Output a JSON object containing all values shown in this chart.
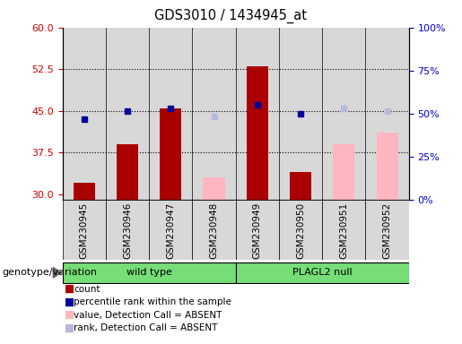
{
  "title": "GDS3010 / 1434945_at",
  "samples": [
    "GSM230945",
    "GSM230946",
    "GSM230947",
    "GSM230948",
    "GSM230949",
    "GSM230950",
    "GSM230951",
    "GSM230952"
  ],
  "detection_call": [
    "P",
    "P",
    "P",
    "A",
    "P",
    "P",
    "A",
    "A"
  ],
  "count_values": [
    32.0,
    39.0,
    45.5,
    null,
    53.0,
    34.0,
    null,
    null
  ],
  "count_absent_values": [
    null,
    null,
    null,
    33.0,
    null,
    null,
    39.0,
    41.0
  ],
  "rank_values": [
    43.5,
    45.0,
    45.5,
    null,
    46.0,
    44.5,
    null,
    null
  ],
  "rank_absent_values": [
    null,
    null,
    null,
    44.0,
    null,
    null,
    45.5,
    45.0
  ],
  "ylim_left": [
    29,
    60
  ],
  "ylim_right": [
    0,
    100
  ],
  "yticks_left": [
    30,
    37.5,
    45,
    52.5,
    60
  ],
  "yticks_right": [
    0,
    25,
    50,
    75,
    100
  ],
  "bar_width": 0.5,
  "color_count": "#aa0000",
  "color_rank": "#000099",
  "color_count_absent": "#ffb6c1",
  "color_rank_absent": "#b8b8d8",
  "grid_color": "black",
  "bg_color": "#d8d8d8",
  "left_tick_color": "#cc0000",
  "right_tick_color": "#0000cc",
  "genotype_label": "genotype/variation",
  "wild_type_range": [
    0,
    3
  ],
  "plagl2_range": [
    4,
    7
  ],
  "group_color": "#77dd77",
  "legend_items": [
    {
      "label": "count",
      "color": "#aa0000"
    },
    {
      "label": "percentile rank within the sample",
      "color": "#000099"
    },
    {
      "label": "value, Detection Call = ABSENT",
      "color": "#ffb6c1"
    },
    {
      "label": "rank, Detection Call = ABSENT",
      "color": "#b8b8d8"
    }
  ]
}
